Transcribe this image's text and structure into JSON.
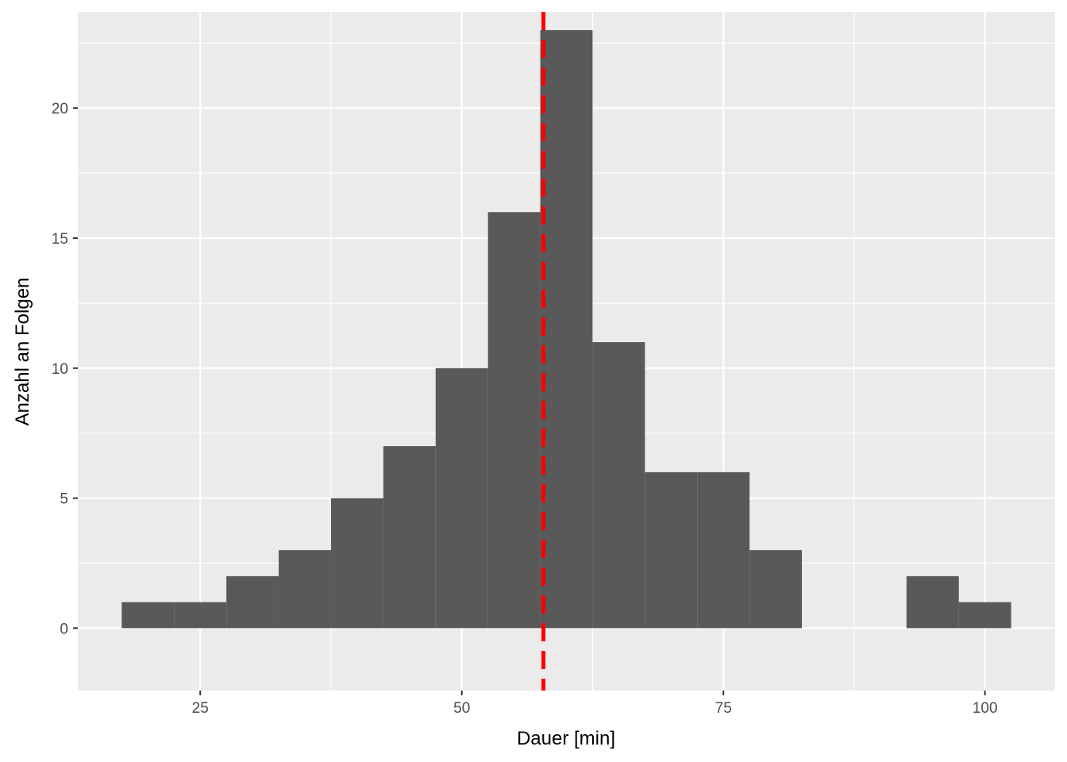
{
  "chart_data": {
    "type": "bar",
    "subtype": "histogram",
    "title": "",
    "xlabel": "Dauer [min]",
    "ylabel": "Anzahl an Folgen",
    "bin_width": 5,
    "bins": [
      {
        "x_start": 17.5,
        "x_end": 22.5,
        "count": 1
      },
      {
        "x_start": 22.5,
        "x_end": 27.5,
        "count": 1
      },
      {
        "x_start": 27.5,
        "x_end": 32.5,
        "count": 2
      },
      {
        "x_start": 32.5,
        "x_end": 37.5,
        "count": 3
      },
      {
        "x_start": 37.5,
        "x_end": 42.5,
        "count": 5
      },
      {
        "x_start": 42.5,
        "x_end": 47.5,
        "count": 7
      },
      {
        "x_start": 47.5,
        "x_end": 52.5,
        "count": 10
      },
      {
        "x_start": 52.5,
        "x_end": 57.5,
        "count": 16
      },
      {
        "x_start": 57.5,
        "x_end": 62.5,
        "count": 23
      },
      {
        "x_start": 62.5,
        "x_end": 67.5,
        "count": 11
      },
      {
        "x_start": 67.5,
        "x_end": 72.5,
        "count": 6
      },
      {
        "x_start": 72.5,
        "x_end": 77.5,
        "count": 6
      },
      {
        "x_start": 77.5,
        "x_end": 82.5,
        "count": 3
      },
      {
        "x_start": 82.5,
        "x_end": 87.5,
        "count": 0
      },
      {
        "x_start": 87.5,
        "x_end": 92.5,
        "count": 0
      },
      {
        "x_start": 92.5,
        "x_end": 97.5,
        "count": 2
      },
      {
        "x_start": 97.5,
        "x_end": 102.5,
        "count": 1
      }
    ],
    "xlim": [
      13.3,
      106.7
    ],
    "ylim": [
      -2.4,
      23.7
    ],
    "x_ticks": [
      25,
      50,
      75,
      100
    ],
    "x_tick_labels": [
      "25",
      "50",
      "75",
      "100"
    ],
    "y_ticks": [
      0,
      5,
      10,
      15,
      20
    ],
    "y_tick_labels": [
      "0",
      "5",
      "10",
      "15",
      "20"
    ],
    "reference_line": {
      "orientation": "vertical",
      "x": 57.8,
      "style": "dashed",
      "color": "#ff0000"
    },
    "grid": true,
    "legend": "none",
    "colors": {
      "bar_fill": "#595959",
      "panel_background": "#ebebeb",
      "grid": "#ffffff",
      "reference_line": "#ff0000"
    }
  }
}
